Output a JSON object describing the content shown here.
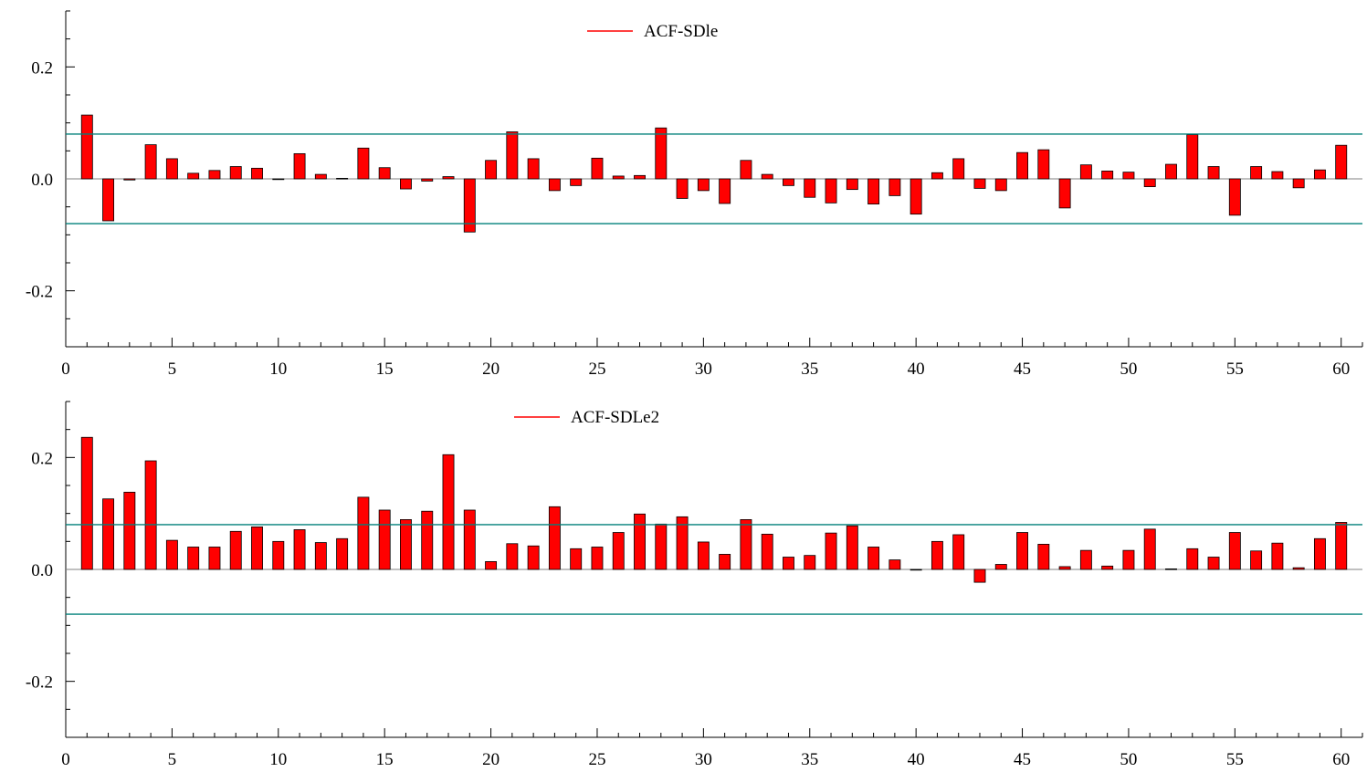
{
  "colors": {
    "bar_fill": "#ff0000",
    "bar_stroke": "#000000",
    "band": "#00807a",
    "zero": "#808080",
    "axis": "#000000",
    "legend_line": "#ff0000"
  },
  "chart_data": [
    {
      "type": "bar",
      "legend": "ACF-SDle",
      "legend_position": "top-center",
      "xlim": [
        0,
        61
      ],
      "ylim": [
        -0.3,
        0.3
      ],
      "xticks": [
        0,
        5,
        10,
        15,
        20,
        25,
        30,
        35,
        40,
        45,
        50,
        55,
        60
      ],
      "yticks": [
        -0.2,
        0.0,
        0.2
      ],
      "ytick_labels": [
        "-0.2",
        "0.0",
        "0.2"
      ],
      "bands": [
        0.08,
        -0.08
      ],
      "x": [
        1,
        2,
        3,
        4,
        5,
        6,
        7,
        8,
        9,
        10,
        11,
        12,
        13,
        14,
        15,
        16,
        17,
        18,
        19,
        20,
        21,
        22,
        23,
        24,
        25,
        26,
        27,
        28,
        29,
        30,
        31,
        32,
        33,
        34,
        35,
        36,
        37,
        38,
        39,
        40,
        41,
        42,
        43,
        44,
        45,
        46,
        47,
        48,
        49,
        50,
        51,
        52,
        53,
        54,
        55,
        56,
        57,
        58,
        59,
        60
      ],
      "values": [
        0.114,
        -0.075,
        -0.002,
        0.061,
        0.036,
        0.01,
        0.015,
        0.022,
        0.019,
        0.0,
        0.045,
        0.008,
        0.001,
        0.055,
        0.02,
        -0.018,
        -0.004,
        0.004,
        -0.095,
        0.033,
        0.084,
        0.036,
        -0.021,
        -0.012,
        0.037,
        0.005,
        0.006,
        0.091,
        -0.035,
        -0.021,
        -0.044,
        0.033,
        0.008,
        -0.012,
        -0.033,
        -0.043,
        -0.019,
        -0.045,
        -0.03,
        -0.063,
        0.011,
        0.036,
        -0.017,
        -0.021,
        0.047,
        0.052,
        -0.052,
        0.025,
        0.014,
        0.012,
        -0.014,
        0.026,
        0.079,
        0.022,
        -0.065,
        0.022,
        0.013,
        -0.016,
        0.016,
        0.06
      ]
    },
    {
      "type": "bar",
      "legend": "ACF-SDLe2",
      "legend_position": "top-center",
      "xlim": [
        0,
        61
      ],
      "ylim": [
        -0.3,
        0.3
      ],
      "xticks": [
        0,
        5,
        10,
        15,
        20,
        25,
        30,
        35,
        40,
        45,
        50,
        55,
        60
      ],
      "yticks": [
        -0.2,
        0.0,
        0.2
      ],
      "ytick_labels": [
        "-0.2",
        "0.0",
        "0.2"
      ],
      "bands": [
        0.08,
        -0.08
      ],
      "x": [
        1,
        2,
        3,
        4,
        5,
        6,
        7,
        8,
        9,
        10,
        11,
        12,
        13,
        14,
        15,
        16,
        17,
        18,
        19,
        20,
        21,
        22,
        23,
        24,
        25,
        26,
        27,
        28,
        29,
        30,
        31,
        32,
        33,
        34,
        35,
        36,
        37,
        38,
        39,
        40,
        41,
        42,
        43,
        44,
        45,
        46,
        47,
        48,
        49,
        50,
        51,
        52,
        53,
        54,
        55,
        56,
        57,
        58,
        59,
        60
      ],
      "values": [
        0.236,
        0.126,
        0.138,
        0.194,
        0.052,
        0.04,
        0.04,
        0.068,
        0.076,
        0.05,
        0.071,
        0.048,
        0.055,
        0.129,
        0.106,
        0.089,
        0.104,
        0.205,
        0.106,
        0.014,
        0.046,
        0.042,
        0.112,
        0.037,
        0.04,
        0.066,
        0.099,
        0.081,
        0.094,
        0.049,
        0.027,
        0.089,
        0.063,
        0.022,
        0.025,
        0.065,
        0.078,
        0.04,
        0.017,
        0.0,
        0.05,
        0.062,
        -0.023,
        0.009,
        0.066,
        0.045,
        0.005,
        0.034,
        0.006,
        0.034,
        0.072,
        0.001,
        0.037,
        0.022,
        0.066,
        0.033,
        0.047,
        0.003,
        0.055,
        0.084
      ]
    }
  ]
}
